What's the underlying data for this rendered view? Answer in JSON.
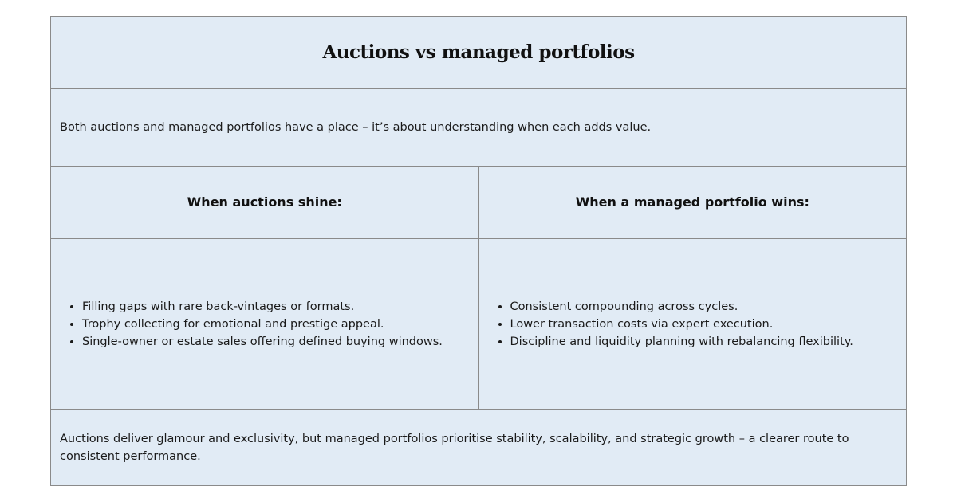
{
  "title": "Auctions vs managed portfolios",
  "intro": "Both auctions and managed portfolios have a place – it’s about understanding when each adds value.",
  "columns": [
    {
      "heading": "When auctions shine:",
      "items": [
        "Filling gaps with rare back-vintages or formats.",
        "Trophy collecting for emotional and prestige appeal.",
        "Single-owner or estate sales offering defined buying windows."
      ]
    },
    {
      "heading": "When a managed portfolio wins:",
      "items": [
        "Consistent compounding across cycles.",
        "Lower transaction costs via expert execution.",
        "Discipline and liquidity planning with rebalancing flexibility."
      ]
    }
  ],
  "conclusion": "Auctions deliver glamour and exclusivity, but managed portfolios prioritise stability, scalability, and strategic growth – a clearer route to consistent performance.",
  "colors": {
    "background": "#e1ebf5",
    "border": "#8a8a8a"
  }
}
